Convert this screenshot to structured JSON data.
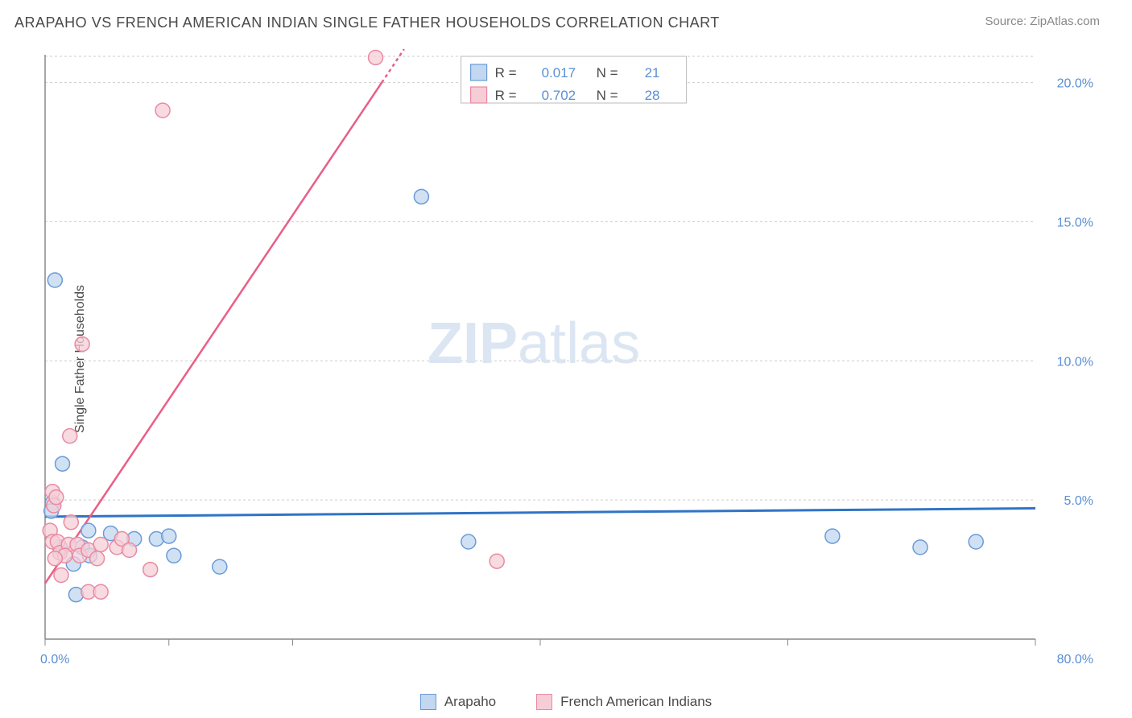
{
  "title": "ARAPAHO VS FRENCH AMERICAN INDIAN SINGLE FATHER HOUSEHOLDS CORRELATION CHART",
  "source": "Source: ZipAtlas.com",
  "y_label": "Single Father Households",
  "watermark": {
    "bold": "ZIP",
    "light": "atlas"
  },
  "chart": {
    "type": "scatter",
    "x_domain": [
      0,
      80
    ],
    "y_domain": [
      0,
      21
    ],
    "y_ticks": [
      5.0,
      10.0,
      15.0,
      20.0
    ],
    "y_tick_suffix": "%",
    "x_ticks_visual": [
      0,
      10,
      20,
      40,
      60,
      80
    ],
    "x_tick_labels": {
      "0": "0.0%",
      "80": "80.0%"
    },
    "background_color": "#ffffff",
    "grid_color": "#cccccc",
    "series": [
      {
        "name": "Arapaho",
        "marker_fill": "#c2d7f0",
        "marker_stroke": "#6a9bd8",
        "marker_opacity": 0.75,
        "marker_radius": 9,
        "line_color": "#2f74c6",
        "line_width": 3,
        "r_value": "0.017",
        "n_value": "21",
        "trend": {
          "x1": 0,
          "y1": 4.4,
          "x2": 80,
          "y2": 4.7
        },
        "points": [
          {
            "x": 0.8,
            "y": 12.9
          },
          {
            "x": 30.4,
            "y": 15.9
          },
          {
            "x": 1.4,
            "y": 6.3
          },
          {
            "x": 0.6,
            "y": 4.9
          },
          {
            "x": 0.5,
            "y": 4.6
          },
          {
            "x": 1.2,
            "y": 3.3
          },
          {
            "x": 3.0,
            "y": 3.3
          },
          {
            "x": 3.5,
            "y": 3.9
          },
          {
            "x": 5.3,
            "y": 3.8
          },
          {
            "x": 7.2,
            "y": 3.6
          },
          {
            "x": 9.0,
            "y": 3.6
          },
          {
            "x": 10.4,
            "y": 3.0
          },
          {
            "x": 10.0,
            "y": 3.7
          },
          {
            "x": 14.1,
            "y": 2.6
          },
          {
            "x": 2.3,
            "y": 2.7
          },
          {
            "x": 2.5,
            "y": 1.6
          },
          {
            "x": 34.2,
            "y": 3.5
          },
          {
            "x": 63.6,
            "y": 3.7
          },
          {
            "x": 70.7,
            "y": 3.3
          },
          {
            "x": 75.2,
            "y": 3.5
          },
          {
            "x": 3.6,
            "y": 3.0
          }
        ]
      },
      {
        "name": "French American Indians",
        "marker_fill": "#f6cdd7",
        "marker_stroke": "#e88aa2",
        "marker_opacity": 0.75,
        "marker_radius": 9,
        "line_color": "#e85f86",
        "line_width": 2.5,
        "r_value": "0.702",
        "n_value": "28",
        "trend": {
          "x1": 0,
          "y1": 2.0,
          "x2": 29,
          "y2": 21.2
        },
        "trend_dash_at": {
          "x": 27.2,
          "y": 20.0
        },
        "points": [
          {
            "x": 26.7,
            "y": 20.9
          },
          {
            "x": 9.5,
            "y": 19.0
          },
          {
            "x": 3.0,
            "y": 10.6
          },
          {
            "x": 2.0,
            "y": 7.3
          },
          {
            "x": 0.6,
            "y": 5.3
          },
          {
            "x": 0.7,
            "y": 4.8
          },
          {
            "x": 0.9,
            "y": 5.1
          },
          {
            "x": 0.4,
            "y": 3.9
          },
          {
            "x": 0.6,
            "y": 3.5
          },
          {
            "x": 1.0,
            "y": 3.5
          },
          {
            "x": 1.2,
            "y": 3.1
          },
          {
            "x": 1.9,
            "y": 3.4
          },
          {
            "x": 1.6,
            "y": 3.0
          },
          {
            "x": 2.6,
            "y": 3.4
          },
          {
            "x": 2.8,
            "y": 3.0
          },
          {
            "x": 3.5,
            "y": 3.2
          },
          {
            "x": 4.2,
            "y": 2.9
          },
          {
            "x": 4.5,
            "y": 3.4
          },
          {
            "x": 5.8,
            "y": 3.3
          },
          {
            "x": 6.2,
            "y": 3.6
          },
          {
            "x": 6.8,
            "y": 3.2
          },
          {
            "x": 8.5,
            "y": 2.5
          },
          {
            "x": 1.3,
            "y": 2.3
          },
          {
            "x": 3.5,
            "y": 1.7
          },
          {
            "x": 4.5,
            "y": 1.7
          },
          {
            "x": 0.8,
            "y": 2.9
          },
          {
            "x": 2.1,
            "y": 4.2
          },
          {
            "x": 36.5,
            "y": 2.8
          }
        ]
      }
    ]
  },
  "stat_legend": {
    "r_label": "R  =",
    "n_label": "N  ="
  },
  "bottom_legend": [
    {
      "label": "Arapaho",
      "fill": "#c2d7f0",
      "stroke": "#6a9bd8"
    },
    {
      "label": "French American Indians",
      "fill": "#f6cdd7",
      "stroke": "#e88aa2"
    }
  ]
}
